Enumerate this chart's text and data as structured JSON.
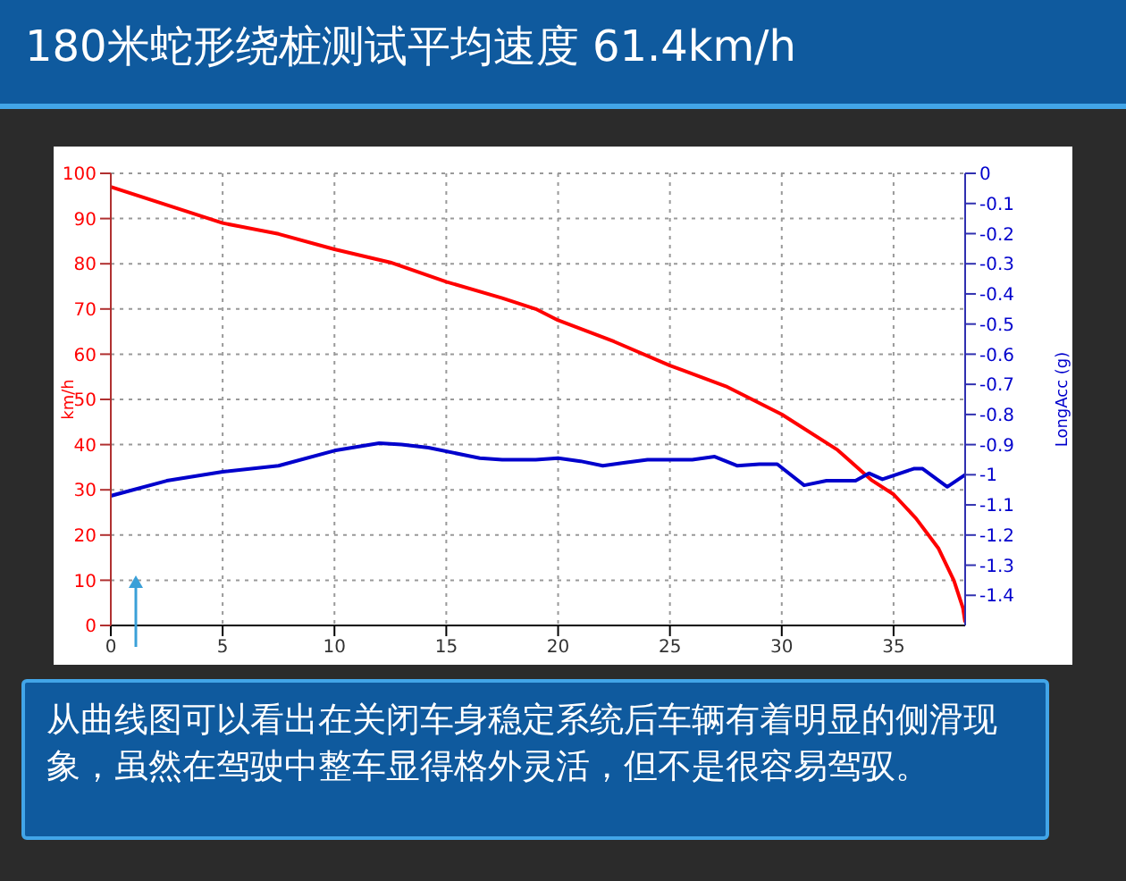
{
  "chart_data": {
    "type": "line",
    "title": "180米蛇形绕桩测试平均速度 61.4km/h",
    "ylabel": "km/h",
    "y2label": "LongAcc (g)",
    "annotations": [
      "从曲线图可以看出在关闭车身稳定系统后车辆有着明显的侧滑现象，虽然在驾驶中整车显得格外灵活，但不是很容易驾驭。"
    ],
    "xlim": [
      0,
      38.2
    ],
    "xticks": [
      0,
      5,
      10,
      15,
      20,
      25,
      30,
      35
    ],
    "ylim": [
      0,
      100
    ],
    "yticks": [
      0,
      10,
      20,
      30,
      40,
      50,
      60,
      70,
      80,
      90,
      100
    ],
    "y2lim": [
      -1.5,
      0
    ],
    "y2ticks": [
      0,
      -0.1,
      -0.2,
      -0.3,
      -0.4,
      -0.5,
      -0.6,
      -0.7,
      -0.8,
      -0.9,
      -1,
      -1.1,
      -1.2,
      -1.3,
      -1.4
    ],
    "grid": true,
    "legend": false,
    "series": [
      {
        "color": "#ff0000",
        "x": [
          0,
          2.5,
          5,
          7.5,
          10,
          12.5,
          15,
          17.5,
          19,
          20,
          22.5,
          25,
          27.5,
          30,
          32.5,
          34,
          35,
          36,
          37,
          37.7,
          38.1,
          38.2
        ],
        "values": [
          97,
          93,
          89,
          86.6,
          83.2,
          80.3,
          76,
          72.4,
          70,
          67.5,
          62.8,
          57.5,
          52.9,
          46.7,
          38.8,
          32.2,
          29,
          23.7,
          17.1,
          9.9,
          3.9,
          0.7
        ]
      },
      {
        "color": "#0000cc",
        "axis": "y2",
        "x": [
          0,
          2.5,
          5,
          7.5,
          10,
          12,
          13,
          14.2,
          16.5,
          17.5,
          19,
          20,
          21,
          22,
          23,
          24,
          26,
          27,
          28,
          29,
          29.8,
          31,
          32,
          33.3,
          33.9,
          34.5,
          35.9,
          36.3,
          37.4,
          38.2
        ],
        "values": [
          -1.07,
          -1.02,
          -0.99,
          -0.97,
          -0.92,
          -0.895,
          -0.9,
          -0.91,
          -0.945,
          -0.95,
          -0.95,
          -0.945,
          -0.955,
          -0.97,
          -0.96,
          -0.95,
          -0.95,
          -0.94,
          -0.97,
          -0.965,
          -0.965,
          -1.035,
          -1.02,
          -1.02,
          -0.995,
          -1.015,
          -0.98,
          -0.98,
          -1.04,
          -1
        ]
      }
    ]
  }
}
